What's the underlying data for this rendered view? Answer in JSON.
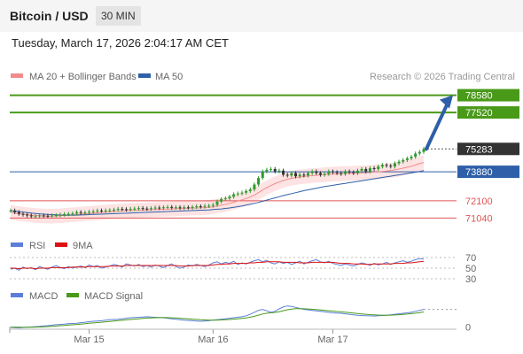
{
  "header": {
    "title": "Bitcoin / USD",
    "timeframe": "30 MIN",
    "datetime": "Tuesday, March 17, 2026 2:04:17 AM CET"
  },
  "legend": {
    "ma20": "MA 20 + Bollinger Bands",
    "ma50": "MA 50",
    "credit": "Research © 2026 Trading Central"
  },
  "colors": {
    "green": "#4a9a1a",
    "blue": "#2e5fa8",
    "red": "#e05555",
    "dark": "#333333",
    "bollinger_fill": "#fde3e3",
    "candle_up": "#2e9a2e",
    "candle_down": "#333333"
  },
  "chart_data": [
    {
      "type": "line",
      "name": "price",
      "ylim": [
        70300,
        79100
      ],
      "levels": [
        {
          "value": 78580,
          "label": "78580",
          "kind": "resistance",
          "color": "#4a9a1a"
        },
        {
          "value": 77520,
          "label": "77520",
          "kind": "resistance",
          "color": "#4a9a1a"
        },
        {
          "value": 75283,
          "label": "75283",
          "kind": "last",
          "color": "#333333"
        },
        {
          "value": 73880,
          "label": "73880",
          "kind": "pivot",
          "color": "#2e5fa8"
        },
        {
          "value": 72100,
          "label": "72100",
          "kind": "support",
          "color": "#e05555"
        },
        {
          "value": 71040,
          "label": "71040",
          "kind": "support",
          "color": "#e05555"
        }
      ],
      "close": [
        71500,
        71400,
        71300,
        71250,
        71200,
        71150,
        71150,
        71200,
        71180,
        71160,
        71200,
        71220,
        71250,
        71280,
        71300,
        71320,
        71400,
        71350,
        71380,
        71420,
        71450,
        71500,
        71480,
        71500,
        71520,
        71550,
        71600,
        71580,
        71550,
        71600,
        71620,
        71650,
        71620,
        71600,
        71640,
        71680,
        71650,
        71700,
        71720,
        71680,
        71700,
        71650,
        71700,
        71680,
        71720,
        71760,
        71740,
        71780,
        71800,
        71850,
        72050,
        72200,
        72250,
        72350,
        72500,
        72550,
        72600,
        72700,
        72800,
        73100,
        73500,
        73900,
        74000,
        74050,
        73900,
        73950,
        73700,
        73650,
        73800,
        73600,
        73700,
        73650,
        73800,
        73900,
        73800,
        73700,
        73750,
        73900,
        73850,
        73800,
        73750,
        73900,
        73850,
        73800,
        73950,
        74050,
        73900,
        74100,
        74050,
        74200,
        74300,
        74250,
        74200,
        74400,
        74500,
        74600,
        74700,
        74800,
        75000,
        75100,
        75283
      ],
      "ma20": [
        71400,
        71350,
        71300,
        71280,
        71250,
        71220,
        71200,
        71180,
        71170,
        71160,
        71160,
        71170,
        71180,
        71200,
        71220,
        71240,
        71260,
        71280,
        71300,
        71320,
        71340,
        71360,
        71380,
        71400,
        71420,
        71440,
        71460,
        71480,
        71490,
        71500,
        71510,
        71520,
        71530,
        71540,
        71550,
        71560,
        71570,
        71580,
        71590,
        71600,
        71610,
        71620,
        71630,
        71640,
        71650,
        71660,
        71670,
        71680,
        71700,
        71730,
        71780,
        71830,
        71880,
        71940,
        72010,
        72080,
        72160,
        72240,
        72330,
        72450,
        72600,
        72760,
        72900,
        73030,
        73150,
        73250,
        73340,
        73420,
        73480,
        73520,
        73560,
        73590,
        73620,
        73640,
        73660,
        73680,
        73700,
        73720,
        73740,
        73750,
        73760,
        73770,
        73780,
        73790,
        73800,
        73810,
        73820,
        73840,
        73860,
        73880,
        73900,
        73930,
        73960,
        74000,
        74050,
        74100,
        74160,
        74220,
        74300,
        74380,
        74450
      ],
      "ma50": [
        71500,
        71470,
        71440,
        71410,
        71380,
        71350,
        71320,
        71300,
        71280,
        71260,
        71250,
        71240,
        71230,
        71220,
        71220,
        71220,
        71220,
        71230,
        71240,
        71250,
        71260,
        71270,
        71280,
        71290,
        71300,
        71310,
        71320,
        71330,
        71340,
        71350,
        71360,
        71370,
        71380,
        71390,
        71400,
        71410,
        71420,
        71430,
        71440,
        71450,
        71460,
        71470,
        71480,
        71490,
        71500,
        71510,
        71520,
        71530,
        71540,
        71560,
        71580,
        71600,
        71630,
        71660,
        71700,
        71740,
        71780,
        71830,
        71880,
        71940,
        72000,
        72070,
        72140,
        72210,
        72280,
        72350,
        72420,
        72480,
        72540,
        72600,
        72660,
        72720,
        72770,
        72820,
        72870,
        72920,
        72970,
        73010,
        73050,
        73090,
        73130,
        73170,
        73210,
        73250,
        73290,
        73330,
        73370,
        73410,
        73450,
        73490,
        73530,
        73570,
        73610,
        73650,
        73690,
        73730,
        73770,
        73810,
        73850,
        73900,
        73950
      ]
    },
    {
      "type": "line",
      "name": "RSI",
      "legend": [
        "RSI",
        "9MA"
      ],
      "ylim": [
        25,
        75
      ],
      "levels": [
        {
          "value": 70,
          "label": "70"
        },
        {
          "value": 50,
          "label": "50"
        },
        {
          "value": 30,
          "label": "30"
        }
      ],
      "rsi": [
        48,
        50,
        46,
        52,
        49,
        51,
        47,
        53,
        50,
        48,
        52,
        55,
        51,
        49,
        53,
        50,
        52,
        54,
        51,
        56,
        53,
        55,
        50,
        52,
        54,
        57,
        55,
        52,
        58,
        56,
        54,
        57,
        53,
        55,
        52,
        56,
        54,
        51,
        55,
        58,
        53,
        50,
        52,
        56,
        54,
        57,
        55,
        53,
        56,
        60,
        62,
        58,
        61,
        59,
        63,
        57,
        60,
        58,
        61,
        64,
        66,
        62,
        65,
        60,
        58,
        62,
        59,
        61,
        57,
        60,
        63,
        58,
        61,
        64,
        66,
        62,
        60,
        63,
        59,
        57,
        55,
        58,
        56,
        54,
        57,
        60,
        58,
        55,
        59,
        56,
        58,
        61,
        57,
        60,
        62,
        64,
        61,
        63,
        66,
        68,
        67
      ],
      "ma9": [
        50,
        50,
        49,
        50,
        50,
        50,
        49,
        50,
        50,
        50,
        51,
        51,
        51,
        51,
        51,
        52,
        52,
        52,
        52,
        53,
        53,
        53,
        53,
        53,
        54,
        54,
        54,
        54,
        55,
        55,
        55,
        55,
        55,
        55,
        55,
        55,
        55,
        55,
        55,
        55,
        55,
        54,
        54,
        54,
        55,
        55,
        55,
        55,
        55,
        56,
        57,
        57,
        58,
        58,
        59,
        59,
        59,
        59,
        60,
        60,
        61,
        61,
        62,
        62,
        62,
        62,
        61,
        61,
        61,
        61,
        60,
        60,
        60,
        61,
        61,
        61,
        61,
        61,
        61,
        60,
        59,
        59,
        59,
        58,
        58,
        58,
        57,
        57,
        58,
        58,
        58,
        58,
        58,
        59,
        59,
        59,
        60,
        60,
        61,
        62,
        63
      ]
    },
    {
      "type": "line",
      "name": "MACD",
      "legend": [
        "MACD",
        "MACD Signal"
      ],
      "ylim": [
        -150,
        460
      ],
      "levels": [
        {
          "value": 0,
          "label": "0"
        }
      ],
      "macd": [
        -5,
        -10,
        -15,
        -8,
        -2,
        5,
        10,
        15,
        25,
        30,
        40,
        50,
        55,
        60,
        70,
        75,
        80,
        90,
        100,
        110,
        120,
        125,
        130,
        140,
        150,
        155,
        160,
        170,
        180,
        190,
        195,
        200,
        205,
        210,
        205,
        200,
        195,
        190,
        180,
        170,
        160,
        150,
        140,
        135,
        130,
        125,
        120,
        125,
        130,
        140,
        150,
        160,
        170,
        180,
        190,
        200,
        210,
        230,
        260,
        300,
        340,
        360,
        330,
        300,
        320,
        370,
        410,
        430,
        420,
        400,
        380,
        360,
        350,
        340,
        330,
        320,
        310,
        300,
        290,
        285,
        280,
        270,
        260,
        250,
        240,
        235,
        230,
        228,
        225,
        230,
        235,
        240,
        250,
        260,
        270,
        280,
        290,
        300,
        320,
        340,
        360
      ],
      "signal": [
        0,
        0,
        -2,
        -3,
        -3,
        -2,
        0,
        3,
        7,
        12,
        17,
        23,
        29,
        35,
        42,
        48,
        55,
        62,
        69,
        77,
        85,
        93,
        100,
        108,
        116,
        124,
        131,
        139,
        147,
        155,
        162,
        169,
        176,
        183,
        188,
        191,
        193,
        194,
        192,
        189,
        185,
        180,
        174,
        168,
        162,
        156,
        150,
        146,
        143,
        142,
        143,
        146,
        150,
        155,
        162,
        170,
        178,
        188,
        202,
        220,
        243,
        267,
        283,
        290,
        298,
        313,
        333,
        352,
        366,
        373,
        375,
        372,
        368,
        362,
        356,
        349,
        341,
        333,
        325,
        317,
        310,
        302,
        294,
        285,
        277,
        268,
        261,
        254,
        249,
        245,
        243,
        242,
        243,
        246,
        251,
        257,
        265,
        273,
        283,
        295,
        308
      ]
    }
  ],
  "x_axis": {
    "ticks": [
      {
        "index": 19,
        "label": "Mar 15"
      },
      {
        "index": 49,
        "label": "Mar 16"
      },
      {
        "index": 78,
        "label": "Mar 17"
      }
    ]
  }
}
